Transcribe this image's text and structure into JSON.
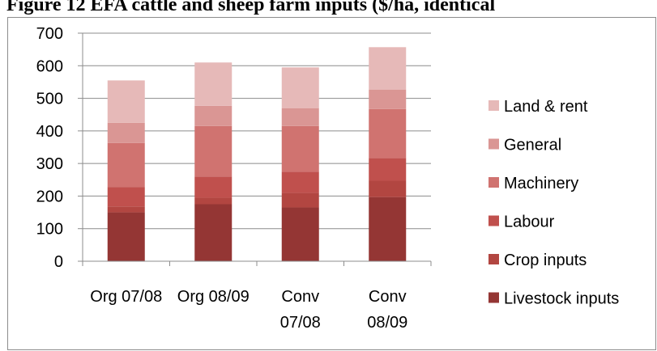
{
  "caption": "Figure 12 EFA cattle and sheep farm inputs ($/ha, identical",
  "chart_data": {
    "type": "bar",
    "stacked": true,
    "title": "",
    "xlabel": "",
    "ylabel": "",
    "ylim": [
      0,
      700
    ],
    "yticks": [
      0,
      100,
      200,
      300,
      400,
      500,
      600,
      700
    ],
    "grid": true,
    "legend_placement": "right",
    "categories": [
      [
        "Org 07/08"
      ],
      [
        "Org 08/09"
      ],
      [
        "Conv",
        "07/08"
      ],
      [
        "Conv",
        "08/09"
      ]
    ],
    "series": [
      {
        "name": "Livestock inputs",
        "color": "#943634",
        "values": [
          150,
          175,
          165,
          197
        ]
      },
      {
        "name": "Crop inputs",
        "color": "#B24641",
        "values": [
          18,
          20,
          45,
          50
        ]
      },
      {
        "name": "Labour",
        "color": "#C0504D",
        "values": [
          60,
          65,
          65,
          70
        ]
      },
      {
        "name": "Machinery",
        "color": "#D07370",
        "values": [
          135,
          155,
          140,
          150
        ]
      },
      {
        "name": "General",
        "color": "#DA9694",
        "values": [
          62,
          62,
          55,
          60
        ]
      },
      {
        "name": "Land & rent",
        "color": "#E6B9B8",
        "values": [
          130,
          133,
          125,
          130
        ]
      }
    ]
  }
}
